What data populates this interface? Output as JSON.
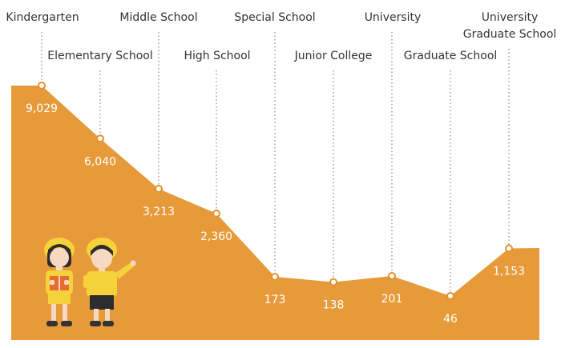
{
  "chart_data": {
    "type": "area",
    "categories": [
      "Kindergarten",
      "Elementary School",
      "Middle School",
      "High School",
      "Special School",
      "Junior College",
      "University",
      "Graduate School",
      "University Graduate School"
    ],
    "values": [
      9029,
      6040,
      3213,
      2360,
      173,
      138,
      201,
      46,
      1153
    ],
    "value_labels": [
      "9,029",
      "6,040",
      "3,213",
      "2,360",
      "173",
      "138",
      "201",
      "46",
      "1,153"
    ],
    "colors": {
      "area": "#e79a3a",
      "guides": "#9a9a9a",
      "text": "#333333",
      "value_text": "#ffffff"
    },
    "grid": false,
    "legend": "none"
  }
}
